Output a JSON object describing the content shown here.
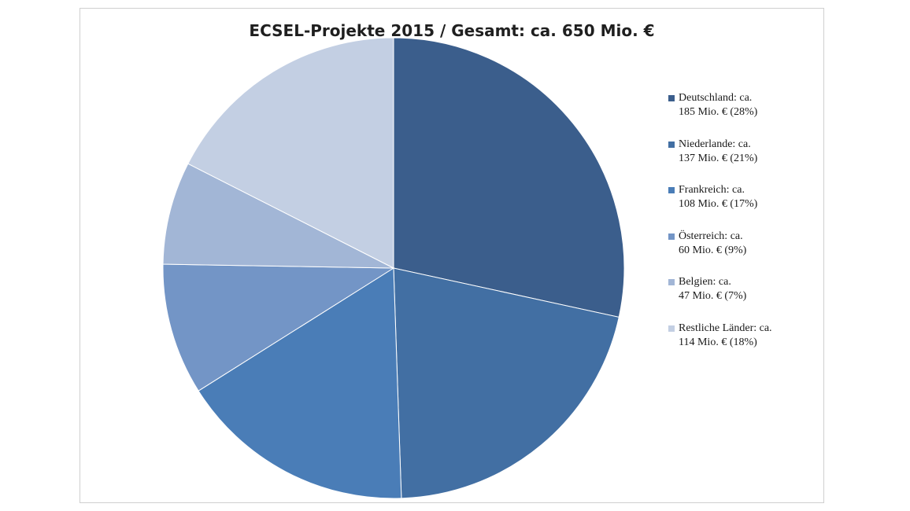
{
  "chart_data": {
    "type": "pie",
    "title": "ECSEL-Projekte 2015 / Gesamt: ca. 650 Mio. €",
    "legend_position": "right",
    "slices": [
      {
        "label_line1": "Deutschland: ca.",
        "label_line2": "185 Mio. € (28%)",
        "value": 185,
        "percent": 28,
        "color": "#3b5e8c"
      },
      {
        "label_line1": "Niederlande: ca.",
        "label_line2": "137 Mio. € (21%)",
        "value": 137,
        "percent": 21,
        "color": "#426fa3"
      },
      {
        "label_line1": "Frankreich: ca.",
        "label_line2": "108 Mio. € (17%)",
        "value": 108,
        "percent": 17,
        "color": "#4a7db7"
      },
      {
        "label_line1": "Österreich: ca.",
        "label_line2": "60 Mio. € (9%)",
        "value": 60,
        "percent": 9,
        "color": "#7395c6"
      },
      {
        "label_line1": "Belgien: ca.",
        "label_line2": "47 Mio. € (7%)",
        "value": 47,
        "percent": 7,
        "color": "#a2b6d6"
      },
      {
        "label_line1": "Restliche Länder: ca.",
        "label_line2": "114 Mio. € (18%)",
        "value": 114,
        "percent": 18,
        "color": "#c3cfe3"
      }
    ]
  }
}
